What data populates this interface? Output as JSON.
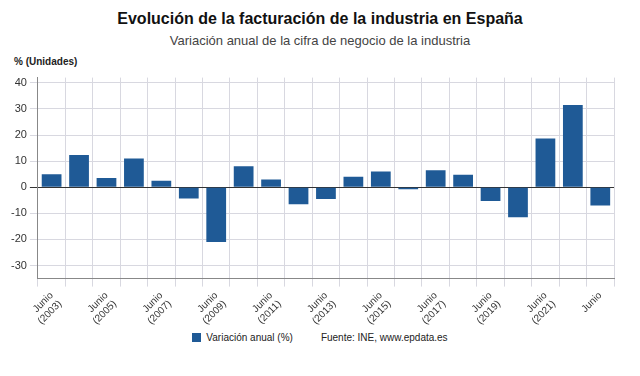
{
  "chart_data": {
    "type": "bar",
    "title": "Evolución de la facturación de la industria en España",
    "subtitle": "Variación anual de la cifra de negocio de la industria",
    "y_label": "% (Unidades)",
    "annotations": [
      "Fuente: INE, www.epdata.es"
    ],
    "categories": [
      "Junio (2003)",
      null,
      "Junio (2005)",
      null,
      "Junio (2007)",
      null,
      "Junio (2009)",
      null,
      "Junio (2011)",
      null,
      "Junio (2013)",
      null,
      "Junio (2015)",
      null,
      "Junio (2017)",
      null,
      "Junio (2019)",
      null,
      "Junio (2021)",
      null,
      "Junio"
    ],
    "series": [
      {
        "name": "Variación anual (%)",
        "color": "#1f5a96",
        "values": [
          5,
          12.3,
          3.5,
          11,
          2.5,
          -4.3,
          -21,
          8,
          3,
          -6.5,
          -4.5,
          4,
          6,
          -0.8,
          6.5,
          4.8,
          -5.3,
          -11.5,
          18.7,
          31.5,
          -7
        ]
      }
    ],
    "ylim": [
      -35,
      42
    ],
    "yticks": [
      -30,
      -20,
      -10,
      0,
      10,
      20,
      30,
      40
    ],
    "grid": true,
    "legend": "bottom"
  }
}
